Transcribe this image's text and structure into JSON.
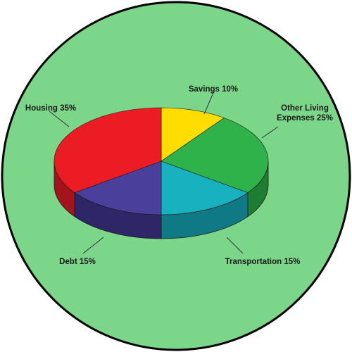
{
  "background_color": "#7bd68a",
  "chart_data": {
    "type": "pie",
    "style": "3d",
    "title": "",
    "categories": [
      "Savings",
      "Other Living Expenses",
      "Transportation",
      "Debt",
      "Housing"
    ],
    "values": [
      10,
      25,
      15,
      15,
      35
    ],
    "unit": "%",
    "colors": [
      "#ffdd00",
      "#2fb24a",
      "#17b1bf",
      "#4b3f9c",
      "#ec1c24"
    ],
    "side_colors": [
      "#c9ae00",
      "#1d7d32",
      "#0f7a85",
      "#2f2668",
      "#a3151a"
    ],
    "labels": {
      "savings": "Savings 10%",
      "other_line1": "Other Living",
      "other_line2": "Expenses 25%",
      "transportation": "Transportation 15%",
      "debt": "Debt 15%",
      "housing": "Housing 35%"
    }
  }
}
